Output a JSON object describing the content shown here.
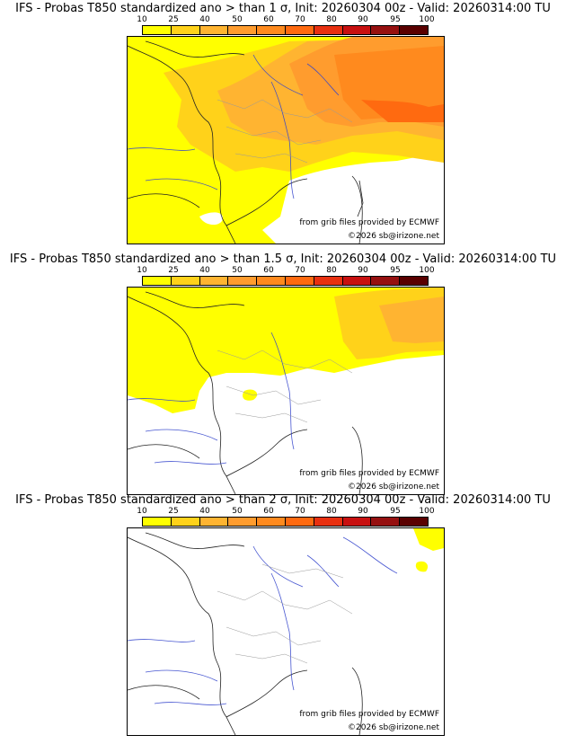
{
  "colorbar": {
    "labels": [
      "10",
      "25",
      "40",
      "50",
      "60",
      "70",
      "80",
      "90",
      "95",
      "100"
    ],
    "colors": [
      "#ffff00",
      "#ffd21a",
      "#ffb431",
      "#ff9c2e",
      "#ff8a1e",
      "#ff6a10",
      "#e83010",
      "#c81010",
      "#961010",
      "#5a0000"
    ]
  },
  "panels": [
    {
      "title": "IFS - Probas T850  standardized ano > than 1 σ, Init: 20260304 00z - Valid: 20260314:00 TU",
      "credit": "from grib files provided by ECMWF",
      "copyright": "©2026 sb@irizone.net"
    },
    {
      "title": "IFS - Probas T850  standardized ano > than 1.5 σ, Init: 20260304 00z - Valid: 20260314:00 TU",
      "credit": "from grib files provided by ECMWF",
      "copyright": "©2026 sb@irizone.net"
    },
    {
      "title": "IFS - Probas T850  standardized ano > than 2 σ, Init: 20260304 00z - Valid: 20260314:00 TU",
      "credit": "from grib files provided by ECMWF",
      "copyright": "©2026 sb@irizone.net"
    }
  ]
}
